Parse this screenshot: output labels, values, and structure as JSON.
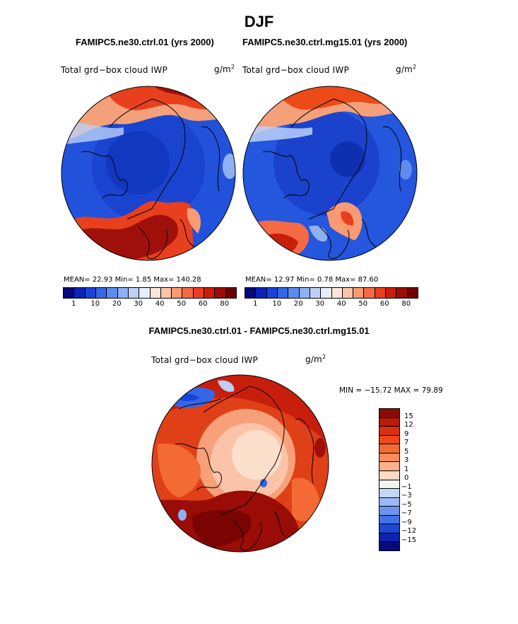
{
  "figure": {
    "season": "DJF",
    "panels": [
      {
        "run_title": "FAMIPC5.ne30.ctrl.01 (yrs 2000)",
        "variable": "Total grd−box cloud IWP",
        "units": "g/m",
        "units_exp": "2",
        "stats": "MEAN=   22.93   Min=    1.85   Max=  140.28"
      },
      {
        "run_title": "FAMIPC5.ne30.ctrl.mg15.01 (yrs 2000)",
        "variable": "Total grd−box cloud IWP",
        "units": "g/m",
        "units_exp": "2",
        "stats": "MEAN=   12.97   Min=    0.78   Max=   87.60"
      }
    ],
    "diff": {
      "title": "FAMIPC5.ne30.ctrl.01 - FAMIPC5.ne30.ctrl.mg15.01",
      "variable": "Total grd−box cloud IWP",
      "units": "g/m",
      "units_exp": "2",
      "minmax": "MIN = −15.72 MAX =   79.89"
    },
    "colorbar_top": {
      "labels": [
        "1",
        "10",
        "20",
        "30",
        "40",
        "50",
        "60",
        "80"
      ],
      "colors": [
        "#08087a",
        "#0a22b8",
        "#1a44d8",
        "#3466e8",
        "#5e8cf0",
        "#8eb0f4",
        "#bcd0f8",
        "#e6eefa",
        "#fde6da",
        "#fbc4a8",
        "#f89a74",
        "#f46a44",
        "#e8401e",
        "#c81e0c",
        "#9a0c06",
        "#700000"
      ]
    },
    "colorbar_diff": {
      "labels": [
        "15",
        "12",
        "9",
        "7",
        "5",
        "3",
        "1",
        "0",
        "−1",
        "−3",
        "−5",
        "−7",
        "−9",
        "−12",
        "−15"
      ],
      "colors": [
        "#8a0a06",
        "#b81a0c",
        "#d8300e",
        "#ec4a18",
        "#f46a34",
        "#f88c5c",
        "#fbb08a",
        "#fdd8c2",
        "#f2f2f2",
        "#c4d6f8",
        "#9cbaf4",
        "#6e94ee",
        "#4470e6",
        "#1c48d4",
        "#0a24b0",
        "#060a7a"
      ]
    }
  }
}
